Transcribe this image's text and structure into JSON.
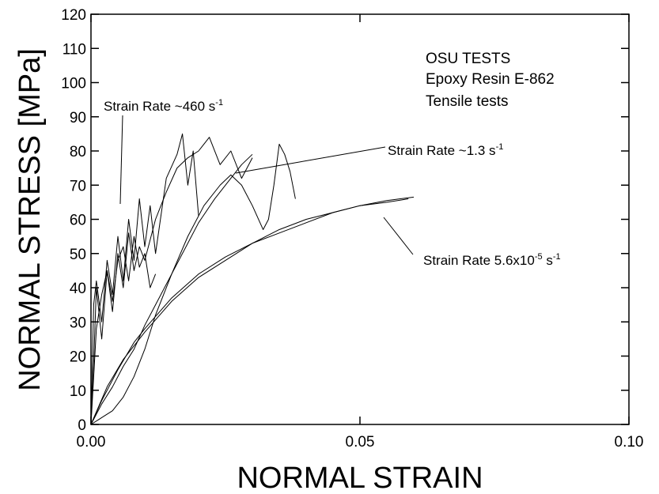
{
  "chart_data": {
    "type": "line",
    "xlabel": "NORMAL STRAIN",
    "ylabel": "NORMAL STRESS [MPa]",
    "xlim": [
      0,
      0.1
    ],
    "ylim": [
      0,
      120
    ],
    "xticks": [
      {
        "value": 0,
        "label": "0.00"
      },
      0.05,
      {
        "value": 0.1,
        "label": "0.10"
      }
    ],
    "yticks": [
      0,
      10,
      20,
      30,
      40,
      50,
      60,
      70,
      80,
      90,
      100,
      110,
      120
    ],
    "notes": [
      "OSU TESTS",
      "Epoxy Resin E-862",
      "Tensile tests"
    ],
    "annotations": [
      {
        "parts": [
          {
            "text": "Strain Rate ~460 s"
          },
          {
            "sup": "-1"
          }
        ]
      },
      {
        "parts": [
          {
            "text": "Strain Rate ~1.3 s"
          },
          {
            "sup": "-1"
          }
        ]
      },
      {
        "parts": [
          {
            "text": "Strain Rate 5.6x10"
          },
          {
            "sup": "-5"
          },
          {
            "text": " s"
          },
          {
            "sup": "-1"
          }
        ]
      }
    ],
    "series": [
      {
        "color": "#000000",
        "x": [
          0,
          0.002,
          0.005,
          0.008,
          0.01,
          0.015,
          0.02,
          0.025,
          0.03,
          0.035,
          0.04,
          0.045,
          0.05,
          0.055,
          0.06
        ],
        "values": [
          0,
          7,
          16,
          24,
          28,
          37,
          44,
          49,
          53,
          57,
          60,
          62,
          64,
          65.5,
          66.5
        ]
      },
      {
        "color": "#000000",
        "x": [
          0,
          0.003,
          0.006,
          0.01,
          0.015,
          0.02,
          0.025,
          0.03,
          0.035,
          0.04,
          0.045,
          0.05,
          0.055,
          0.059
        ],
        "values": [
          0,
          11,
          19,
          27,
          36,
          43,
          48,
          53,
          56,
          59,
          62,
          64,
          65,
          66
        ]
      },
      {
        "color": "#000000",
        "x": [
          0,
          0.002,
          0.004,
          0.006,
          0.008,
          0.01,
          0.012,
          0.015,
          0.018,
          0.02,
          0.023,
          0.026,
          0.028,
          0.03
        ],
        "values": [
          0,
          6,
          11,
          17,
          22,
          29,
          35,
          44,
          53,
          59,
          66,
          72,
          76,
          79
        ]
      },
      {
        "color": "#000000",
        "x": [
          0,
          0.002,
          0.004,
          0.006,
          0.008,
          0.01,
          0.012,
          0.015,
          0.018,
          0.021,
          0.024,
          0.026,
          0.028,
          0.03,
          0.032,
          0.033,
          0.034,
          0.035,
          0.036,
          0.037,
          0.038
        ],
        "values": [
          0,
          2,
          4,
          8,
          14,
          22,
          32,
          44,
          55,
          64,
          70,
          73,
          70,
          64,
          57,
          60,
          70,
          82,
          79,
          74,
          66
        ]
      },
      {
        "color": "#000000",
        "x": [
          0,
          0.0005,
          0.001,
          0.002,
          0.003,
          0.004,
          0.005,
          0.006,
          0.007,
          0.008,
          0.009,
          0.01,
          0.011,
          0.012,
          0.014,
          0.016,
          0.017,
          0.018,
          0.019,
          0.02
        ],
        "values": [
          0,
          35,
          42,
          30,
          48,
          38,
          55,
          42,
          60,
          48,
          66,
          52,
          64,
          50,
          72,
          79,
          85,
          70,
          80,
          61
        ]
      },
      {
        "color": "#000000",
        "x": [
          0,
          0.0005,
          0.001,
          0.002,
          0.003,
          0.004,
          0.005,
          0.006,
          0.007,
          0.008,
          0.009,
          0.01,
          0.012,
          0.014,
          0.016,
          0.018,
          0.02,
          0.022,
          0.024,
          0.026,
          0.028,
          0.03
        ],
        "values": [
          0,
          18,
          40,
          25,
          45,
          33,
          50,
          40,
          56,
          45,
          52,
          48,
          60,
          68,
          75,
          78,
          80,
          84,
          76,
          80,
          72,
          78
        ]
      },
      {
        "color": "#000000",
        "x": [
          0,
          0.001,
          0.002,
          0.003,
          0.004,
          0.005,
          0.006,
          0.007,
          0.008,
          0.009,
          0.01,
          0.011,
          0.012
        ],
        "values": [
          0,
          28,
          38,
          45,
          36,
          48,
          52,
          42,
          55,
          46,
          50,
          40,
          44
        ]
      }
    ]
  }
}
